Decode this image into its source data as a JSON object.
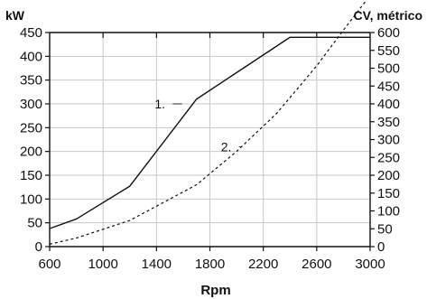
{
  "chart_data": {
    "type": "line",
    "xlabel": "Rpm",
    "ylabel_left": "kW",
    "ylabel_right": "CV, métrico",
    "xlim": [
      600,
      3000
    ],
    "ylim_left": [
      0,
      450
    ],
    "ylim_right": [
      0,
      600
    ],
    "x_ticks": [
      "600",
      "1000",
      "1400",
      "1800",
      "2200",
      "2600",
      "3000"
    ],
    "y_ticks_left": [
      "0",
      "50",
      "100",
      "150",
      "200",
      "250",
      "300",
      "350",
      "400",
      "450"
    ],
    "y_ticks_right": [
      "0",
      "50",
      "100",
      "150",
      "200",
      "250",
      "300",
      "350",
      "400",
      "450",
      "500",
      "550",
      "600"
    ],
    "grid": true,
    "series": [
      {
        "label": "1.",
        "style": "solid",
        "x": [
          600,
          800,
          1200,
          1700,
          2400,
          3000
        ],
        "y": [
          38,
          58,
          127,
          310,
          440,
          440
        ]
      },
      {
        "label": "2.",
        "style": "dashed",
        "x": [
          600,
          800,
          1200,
          1700,
          2000,
          2300,
          2600,
          2800,
          3000
        ],
        "y": [
          5,
          18,
          55,
          130,
          200,
          280,
          380,
          455,
          528
        ]
      }
    ]
  }
}
